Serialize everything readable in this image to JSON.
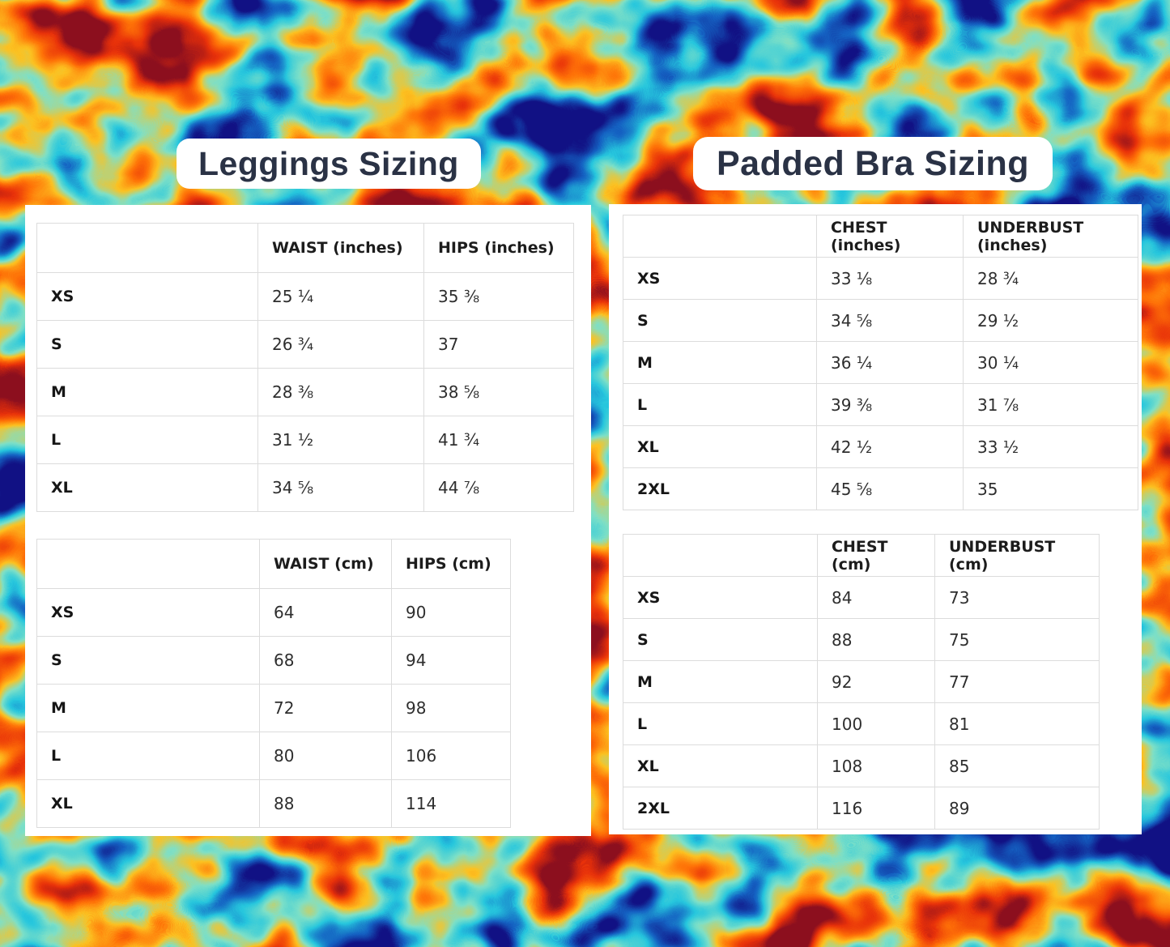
{
  "left_panel": {
    "title": "Leggings Sizing",
    "inches_table": {
      "columns": [
        "",
        "WAIST (inches)",
        "HIPS (inches)"
      ],
      "rows": [
        [
          "XS",
          "25 ¼",
          "35 ⅜"
        ],
        [
          "S",
          "26 ¾",
          "37"
        ],
        [
          "M",
          "28 ⅜",
          "38 ⅝"
        ],
        [
          "L",
          "31 ½",
          "41 ¾"
        ],
        [
          "XL",
          "34 ⅝",
          "44 ⅞"
        ]
      ]
    },
    "cm_table": {
      "columns": [
        "",
        "WAIST (cm)",
        "HIPS (cm)"
      ],
      "rows": [
        [
          "XS",
          "64",
          "90"
        ],
        [
          "S",
          "68",
          "94"
        ],
        [
          "M",
          "72",
          "98"
        ],
        [
          "L",
          "80",
          "106"
        ],
        [
          "XL",
          "88",
          "114"
        ]
      ]
    }
  },
  "right_panel": {
    "title": "Padded Bra Sizing",
    "inches_table": {
      "columns": [
        "",
        "CHEST (inches)",
        "UNDERBUST (inches)"
      ],
      "rows": [
        [
          "XS",
          "33 ⅛",
          "28 ¾"
        ],
        [
          "S",
          "34 ⅝",
          "29 ½"
        ],
        [
          "M",
          "36 ¼",
          "30 ¼"
        ],
        [
          "L",
          "39 ⅜",
          "31 ⅞"
        ],
        [
          "XL",
          "42 ½",
          "33 ½"
        ],
        [
          "2XL",
          "45 ⅝",
          "35"
        ]
      ]
    },
    "cm_table": {
      "columns": [
        "",
        "CHEST (cm)",
        "UNDERBUST (cm)"
      ],
      "rows": [
        [
          "XS",
          "84",
          "73"
        ],
        [
          "S",
          "88",
          "75"
        ],
        [
          "M",
          "92",
          "77"
        ],
        [
          "L",
          "100",
          "81"
        ],
        [
          "XL",
          "108",
          "85"
        ],
        [
          "2XL",
          "116",
          "89"
        ]
      ]
    }
  },
  "colors": {
    "title_text": "#2a3245",
    "card_background": "#ffffff",
    "table_border": "#dcdcdc",
    "header_text": "#1c1c1c",
    "value_text": "#2e2e2e",
    "background_navy": "#151b8a",
    "background_orange": "#f26108",
    "background_red": "#e33b06",
    "background_yellow": "#ffb71e",
    "background_cyan": "#35cbdc"
  }
}
